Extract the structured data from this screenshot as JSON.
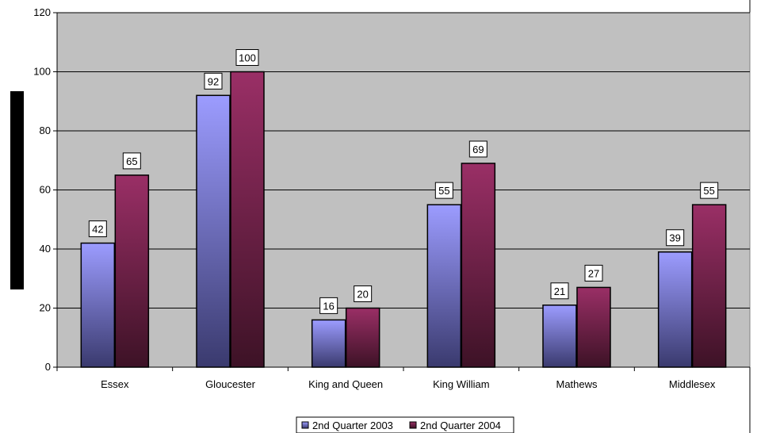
{
  "chart_data": {
    "type": "bar",
    "categories": [
      "Essex",
      "Gloucester",
      "King and Queen",
      "King William",
      "Mathews",
      "Middlesex"
    ],
    "series": [
      {
        "name": "2nd Quarter 2003",
        "values": [
          42,
          92,
          16,
          55,
          21,
          39
        ],
        "color": "#9999ff"
      },
      {
        "name": "2nd Quarter 2004",
        "values": [
          65,
          100,
          20,
          69,
          27,
          55
        ],
        "color": "#993366"
      }
    ],
    "ylim": [
      0,
      120
    ],
    "yticks": [
      "0",
      "20",
      "40",
      "60",
      "80",
      "100",
      "120"
    ],
    "grid": true,
    "legend_position": "bottom",
    "plot_background": "#c0c0c0"
  }
}
